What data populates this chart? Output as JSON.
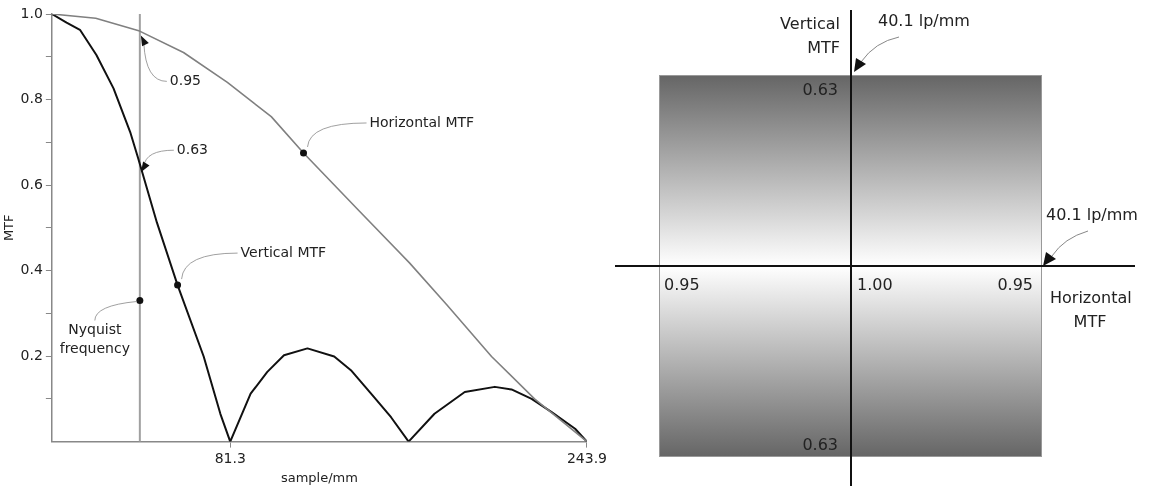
{
  "chart_data": [
    {
      "type": "line",
      "xlabel": "sample/mm",
      "ylabel": "MTF",
      "xlim": [
        0,
        243.9
      ],
      "xticks": [
        81.3,
        243.9
      ],
      "ylim": [
        0,
        1.0
      ],
      "yticks": [
        {
          "value": 0.1,
          "label": null
        },
        0.2,
        {
          "value": 0.3,
          "label": null
        },
        0.4,
        {
          "value": 0.5,
          "label": null
        },
        0.6,
        {
          "value": 0.7,
          "label": null
        },
        0.8,
        {
          "value": 0.9,
          "label": null
        },
        {
          "value": 1.0,
          "label": "1.0"
        }
      ],
      "series": [
        {
          "color": "#808080",
          "x": [
            0,
            20,
            40,
            60,
            80,
            100,
            114.7,
            140,
            163,
            180,
            200.4,
            220,
            243.9
          ],
          "values": [
            1.0,
            0.99,
            0.96,
            0.91,
            0.84,
            0.76,
            0.675,
            0.54,
            0.418,
            0.32,
            0.199,
            0.1,
            0
          ]
        },
        {
          "color": "#111111",
          "x": [
            0,
            6.7,
            12.8,
            20.3,
            28.1,
            35.7,
            39.2,
            47.9,
            57.3,
            69.2,
            76.8,
            81.3,
            90.6,
            98.2,
            105.8,
            116.5,
            128.7,
            136.3,
            145.5,
            154.6,
            162.6,
            174.4,
            188.2,
            201.9,
            209.5,
            218.7,
            227.8,
            238.5,
            243.9
          ],
          "values": [
            1.0,
            0.98,
            0.963,
            0.904,
            0.826,
            0.724,
            0.665,
            0.512,
            0.366,
            0.199,
            0.065,
            0,
            0.112,
            0.163,
            0.202,
            0.218,
            0.199,
            0.167,
            0.112,
            0.057,
            0,
            0.065,
            0.116,
            0.128,
            0.122,
            0.1,
            0.069,
            0.03,
            0
          ]
        }
      ],
      "ref_lines": [
        {
          "axis": "x",
          "value": 40.1,
          "label": "Nyquist frequency",
          "color": "#a0a0a0"
        }
      ],
      "annotations": [
        {
          "text": "0.95",
          "x": 40.1,
          "y": 0.95
        },
        {
          "text": "0.63",
          "x": 40.1,
          "y": 0.63
        },
        {
          "text": "Horizontal MTF",
          "x": 114.7,
          "y": 0.675
        },
        {
          "text": "Vertical MTF",
          "x": 57.3,
          "y": 0.366
        }
      ]
    },
    {
      "type": "other",
      "annotations": [
        "Vertical MTF",
        "40.1 lp/mm",
        "0.63",
        "40.1 lp/mm",
        "0.95",
        "1.00",
        "0.95",
        "Horizontal MTF",
        "0.63"
      ]
    }
  ]
}
